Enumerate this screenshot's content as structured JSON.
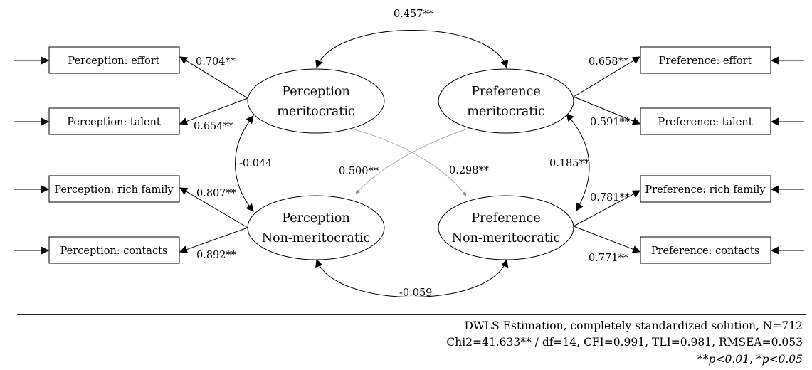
{
  "indicators": [
    {
      "id": "perc_effort",
      "label": "Perception: effort"
    },
    {
      "id": "perc_talent",
      "label": "Perception: talent"
    },
    {
      "id": "perc_rich",
      "label": "Perception: rich family"
    },
    {
      "id": "perc_contacts",
      "label": "Perception: contacts"
    },
    {
      "id": "pref_effort",
      "label": "Preference: effort"
    },
    {
      "id": "pref_talent",
      "label": "Preference: talent"
    },
    {
      "id": "pref_rich",
      "label": "Preference: rich family"
    },
    {
      "id": "pref_contacts",
      "label": "Preference: contacts"
    }
  ],
  "latents": [
    {
      "id": "perc_merit",
      "line1": "Perception",
      "line2": "meritocratic"
    },
    {
      "id": "pref_merit",
      "line1": "Preference",
      "line2": "meritocratic"
    },
    {
      "id": "perc_nonmerit",
      "line1": "Perception",
      "line2": "Non-meritocratic"
    },
    {
      "id": "pref_nonmerit",
      "line1": "Preference",
      "line2": "Non-meritocratic"
    }
  ],
  "loadings": [
    {
      "from": "perc_merit",
      "to": "perc_effort",
      "value": "0.704**"
    },
    {
      "from": "perc_merit",
      "to": "perc_talent",
      "value": "0.654**"
    },
    {
      "from": "perc_nonmerit",
      "to": "perc_rich",
      "value": "0.807**"
    },
    {
      "from": "perc_nonmerit",
      "to": "perc_contacts",
      "value": "0.892**"
    },
    {
      "from": "pref_merit",
      "to": "pref_effort",
      "value": "0.658**"
    },
    {
      "from": "pref_merit",
      "to": "pref_talent",
      "value": "0.591**"
    },
    {
      "from": "pref_nonmerit",
      "to": "pref_rich",
      "value": "0.781**"
    },
    {
      "from": "pref_nonmerit",
      "to": "pref_contacts",
      "value": "0.771**"
    }
  ],
  "covariances": [
    {
      "a": "perc_merit",
      "b": "pref_merit",
      "value": "0.457**"
    },
    {
      "a": "perc_merit",
      "b": "perc_nonmerit",
      "value": "-0.044"
    },
    {
      "a": "pref_merit",
      "b": "pref_nonmerit",
      "value": "0.185**"
    },
    {
      "a": "perc_nonmerit",
      "b": "pref_nonmerit",
      "value": "-0.059"
    },
    {
      "a": "pref_merit",
      "b": "perc_nonmerit",
      "value": "0.500**"
    },
    {
      "a": "perc_merit",
      "b": "pref_nonmerit",
      "value": "0.298**"
    }
  ],
  "notes": {
    "estimation": "DWLS Estimation, completely standardized solution, N=712",
    "fit": "Chi2=41.633** / df=14, CFI=0.991, TLI=0.981, RMSEA=0.053",
    "significance": "**p<0.01, *p<0.05"
  }
}
